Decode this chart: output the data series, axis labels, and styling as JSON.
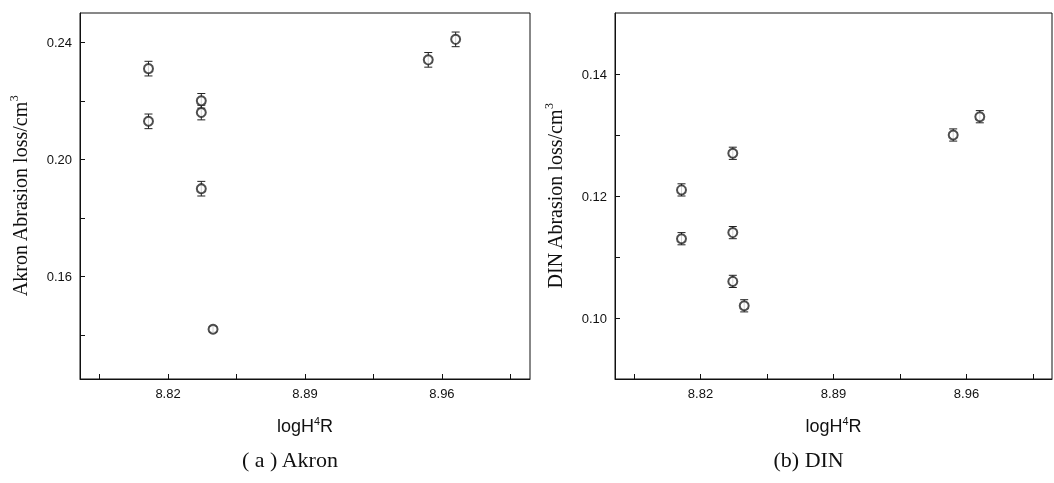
{
  "chart_data": [
    {
      "type": "scatter",
      "annotations": [
        "( a ) Akron"
      ],
      "xlabel": "logH$^{4}$R",
      "ylabel": "Akron Abrasion loss/cm$^{3}$",
      "marker": "circle",
      "series": [
        {
          "color": "#222222",
          "x": [
            8.81,
            8.81,
            8.837,
            8.837,
            8.837,
            8.843,
            8.953,
            8.967
          ],
          "values": [
            0.231,
            0.213,
            0.22,
            0.216,
            0.19,
            0.142,
            0.234,
            0.241
          ],
          "errors": [
            0.0025,
            0.0025,
            0.0025,
            0.0025,
            0.0025,
            0.001,
            0.0025,
            0.0025
          ]
        }
      ],
      "xlim": [
        8.775,
        9.005
      ],
      "xticks": [
        {
          "value": 8.785,
          "label": null
        },
        8.82,
        {
          "value": 8.855,
          "label": null
        },
        8.89,
        {
          "value": 8.925,
          "label": null
        },
        8.96,
        {
          "value": 8.995,
          "label": null
        }
      ],
      "ylim": [
        0.125,
        0.25
      ],
      "yticks": [
        {
          "value": 0.14,
          "label": null
        },
        {
          "value": 0.16,
          "label": "0.16"
        },
        {
          "value": 0.18,
          "label": null
        },
        {
          "value": 0.2,
          "label": "0.20"
        },
        {
          "value": 0.22,
          "label": null
        },
        {
          "value": 0.24,
          "label": "0.24"
        }
      ]
    },
    {
      "type": "scatter",
      "annotations": [
        "(b) DIN"
      ],
      "xlabel": "logH$^{4}$R",
      "ylabel": "DIN Abrasion loss/cm$^{3}$",
      "marker": "circle",
      "series": [
        {
          "color": "#222222",
          "x": [
            8.81,
            8.81,
            8.837,
            8.837,
            8.837,
            8.843,
            8.953,
            8.967
          ],
          "values": [
            0.121,
            0.113,
            0.127,
            0.114,
            0.106,
            0.102,
            0.13,
            0.133
          ],
          "errors": [
            0.001,
            0.001,
            0.001,
            0.001,
            0.001,
            0.001,
            0.001,
            0.001
          ]
        }
      ],
      "xlim": [
        8.775,
        9.005
      ],
      "xticks": [
        {
          "value": 8.785,
          "label": null
        },
        8.82,
        {
          "value": 8.855,
          "label": null
        },
        8.89,
        {
          "value": 8.925,
          "label": null
        },
        8.96,
        {
          "value": 8.995,
          "label": null
        }
      ],
      "ylim": [
        0.09,
        0.15
      ],
      "yticks": [
        {
          "value": 0.1,
          "label": "0.10"
        },
        {
          "value": 0.11,
          "label": null
        },
        {
          "value": 0.12,
          "label": "0.12"
        },
        {
          "value": 0.13,
          "label": null
        },
        {
          "value": 0.14,
          "label": "0.14"
        }
      ]
    }
  ]
}
